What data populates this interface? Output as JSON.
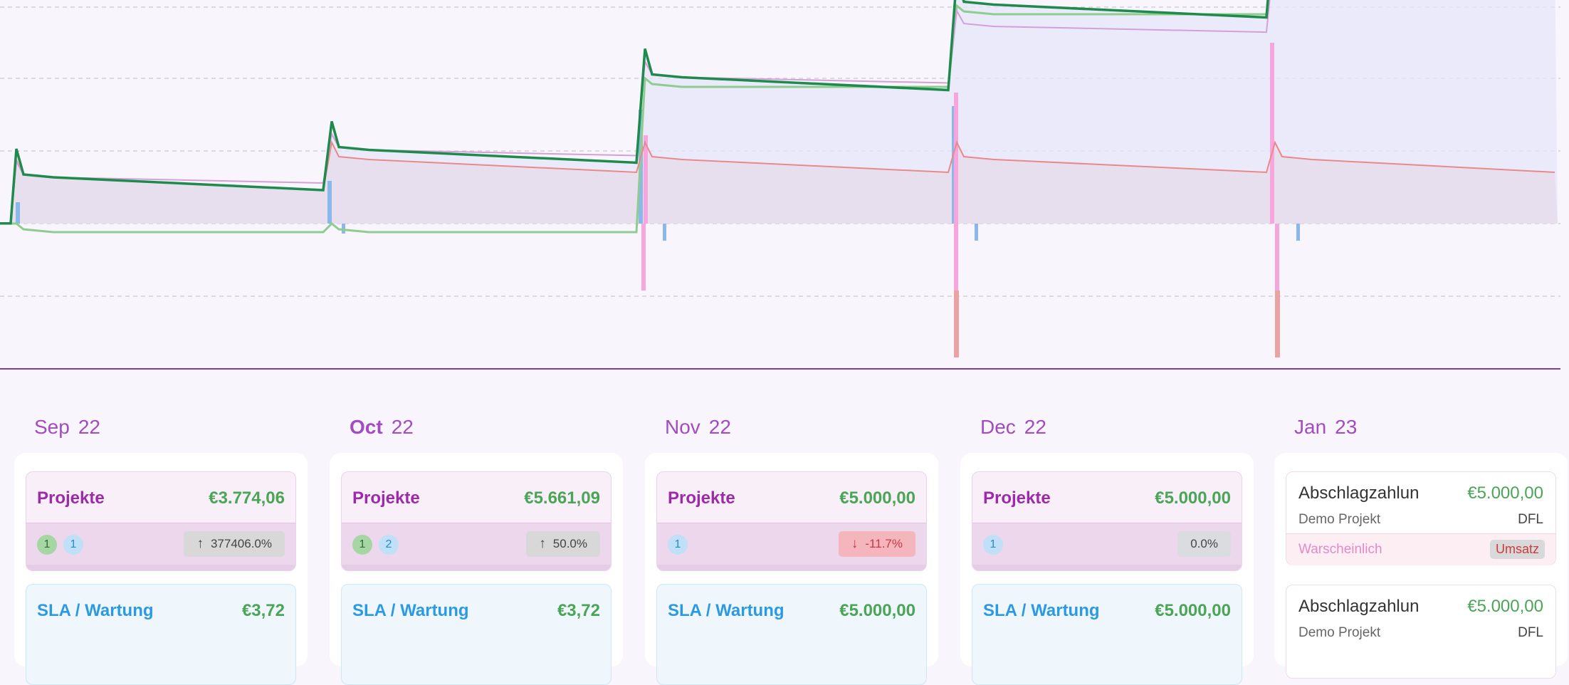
{
  "timeline": {
    "months": [
      {
        "month": "Sep",
        "year": "22",
        "current": false,
        "projekte": {
          "label": "Projekte",
          "amount": "€3.774,06",
          "badges": [
            {
              "count": "1",
              "color": "green"
            },
            {
              "count": "1",
              "color": "blue"
            }
          ],
          "change": "377406.0%",
          "trend": "up"
        },
        "sla": {
          "label": "SLA / Wartung",
          "amount": "€3,72"
        }
      },
      {
        "month": "Oct",
        "year": "22",
        "current": true,
        "projekte": {
          "label": "Projekte",
          "amount": "€5.661,09",
          "badges": [
            {
              "count": "1",
              "color": "green"
            },
            {
              "count": "2",
              "color": "blue"
            }
          ],
          "change": "50.0%",
          "trend": "up"
        },
        "sla": {
          "label": "SLA / Wartung",
          "amount": "€3,72"
        }
      },
      {
        "month": "Nov",
        "year": "22",
        "current": false,
        "projekte": {
          "label": "Projekte",
          "amount": "€5.000,00",
          "badges": [
            {
              "count": "1",
              "color": "blue"
            }
          ],
          "change": "-11.7%",
          "trend": "down"
        },
        "sla": {
          "label": "SLA / Wartung",
          "amount": "€5.000,00"
        }
      },
      {
        "month": "Dec",
        "year": "22",
        "current": false,
        "projekte": {
          "label": "Projekte",
          "amount": "€5.000,00",
          "badges": [
            {
              "count": "1",
              "color": "blue"
            }
          ],
          "change": "0.0%",
          "trend": "flat"
        },
        "sla": {
          "label": "SLA / Wartung",
          "amount": "€5.000,00"
        }
      }
    ],
    "january": {
      "month": "Jan",
      "year": "23",
      "items": [
        {
          "title": "Abschlagzahlun",
          "amount": "€5.000,00",
          "project": "Demo Projekt",
          "code": "DFL",
          "probability": "Warscheinlich",
          "tag": "Umsatz"
        },
        {
          "title": "Abschlagzahlun",
          "amount": "€5.000,00",
          "project": "Demo Projekt",
          "code": "DFL"
        }
      ]
    }
  },
  "colors": {
    "accent": "#a24cbf",
    "green": "#1e8a4c",
    "pink_line": "#d4a0d8",
    "red_line": "#e88a8a",
    "lightgreen": "#8fcc8f",
    "bar_blue": "#8bb8ea",
    "bar_pink": "#f6a6dc",
    "bar_red": "#e9a3a3",
    "amount_green": "#4aa556"
  },
  "icons": {
    "up": "arrow-up-icon",
    "down": "arrow-down-icon"
  },
  "chart_data": {
    "type": "line",
    "title": "",
    "xlabel": "",
    "ylabel": "",
    "grid": true,
    "x": [
      "Sep 22",
      "Oct 22",
      "Nov 22",
      "Dec 22",
      "Jan 23"
    ],
    "series": [
      {
        "values": [
          3774.06,
          5661.09,
          10661.09,
          15661.09,
          20000
        ]
      },
      {
        "values": [
          3774.06,
          5661.09,
          5000,
          5000,
          5000
        ]
      },
      {
        "values": [
          0,
          0,
          10000,
          15000,
          20000
        ]
      },
      {
        "values": [
          0,
          0,
          0,
          0,
          0
        ]
      }
    ]
  }
}
